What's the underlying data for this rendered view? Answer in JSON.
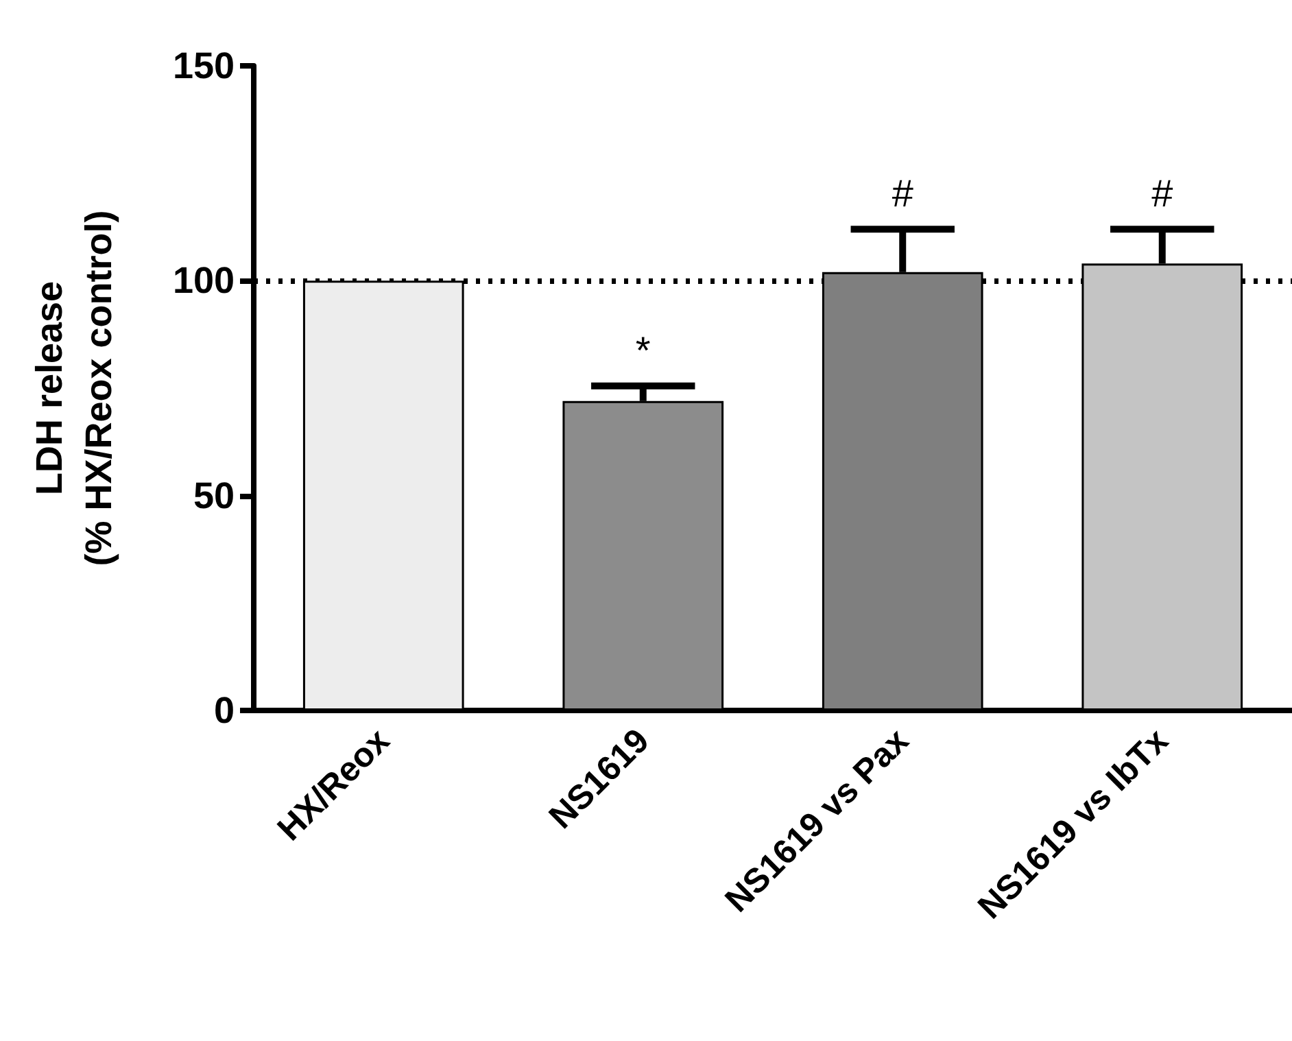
{
  "chart_data": {
    "type": "bar",
    "ylabel": "LDH release\n(% HX/Reox control)",
    "categories": [
      "HX/Reox",
      "NS1619",
      "NS1619 vs Pax",
      "NS1619 vs IbTx"
    ],
    "values": [
      100,
      72,
      102,
      104
    ],
    "errors": [
      null,
      3.5,
      10,
      8
    ],
    "colors": [
      "#ededed",
      "#8c8c8c",
      "#7f7f7f",
      "#c4c4c4"
    ],
    "ylim": [
      0,
      150
    ],
    "yticks": [
      0,
      50,
      100,
      150
    ],
    "grid": false,
    "ref_lines": [
      {
        "axis": "y",
        "value": 100,
        "label": null,
        "line_style": "dotted",
        "color": "#000000"
      }
    ],
    "annotations": [
      "*",
      "#",
      "#"
    ]
  }
}
